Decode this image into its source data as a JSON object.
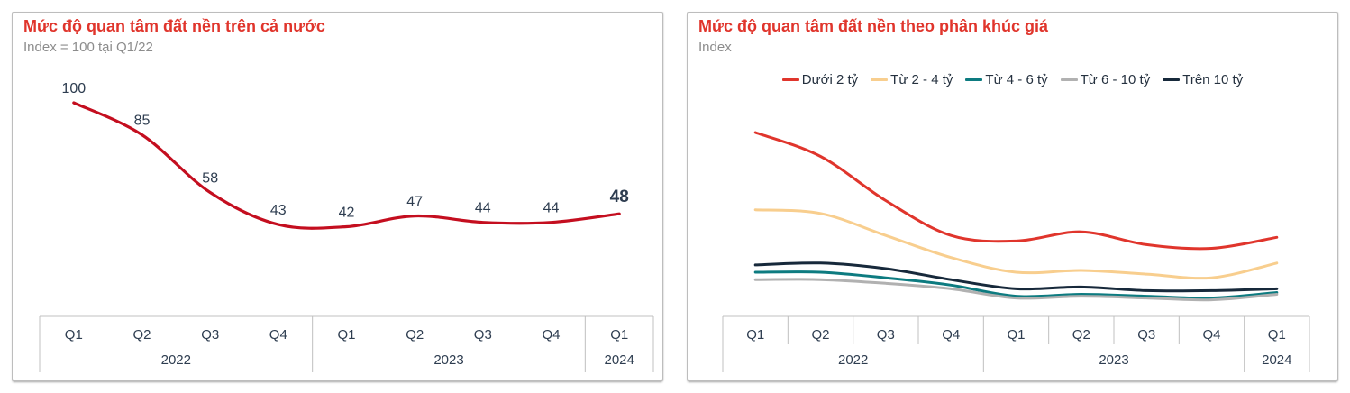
{
  "colors": {
    "title_red": "#e0352c",
    "subtitle_gray": "#8c8c8c",
    "label_navy": "#2e3d50",
    "axis_gray": "#c0c0c0",
    "national_line_red": "#c40e1f",
    "segment_red": "#e0352c",
    "segment_yellow": "#f8ce8e",
    "segment_teal": "#0d7b80",
    "segment_gray": "#b1b1b1",
    "segment_navy": "#17293b"
  },
  "chart_data": [
    {
      "type": "line",
      "title": "Mức độ quan tâm đất nền trên cả nước",
      "subtitle": "Index = 100 tại Q1/22",
      "legend_position": "none",
      "grid": false,
      "ylim": [
        0,
        110
      ],
      "x_quarters": [
        "Q1",
        "Q2",
        "Q3",
        "Q4",
        "Q1",
        "Q2",
        "Q3",
        "Q4",
        "Q1"
      ],
      "x_year_groups": [
        {
          "label": "2022",
          "span": 4
        },
        {
          "label": "2023",
          "span": 4
        },
        {
          "label": "2024",
          "span": 1
        }
      ],
      "show_data_labels": true,
      "emphasize_last_label": true,
      "series": [
        {
          "key": "ca-nuoc",
          "name": "Mức độ quan tâm đất nền trên cả nước",
          "color": "#c40e1f",
          "values": [
            100,
            85,
            58,
            43,
            42,
            47,
            44,
            44,
            48
          ]
        }
      ]
    },
    {
      "type": "line",
      "title": "Mức độ quan tâm đất nền theo phân khúc giá",
      "subtitle": "Index",
      "legend_position": "top",
      "grid": false,
      "ylim": [
        0,
        110
      ],
      "x_quarters": [
        "Q1",
        "Q2",
        "Q3",
        "Q4",
        "Q1",
        "Q2",
        "Q3",
        "Q4",
        "Q1"
      ],
      "x_year_groups": [
        {
          "label": "2022",
          "span": 4
        },
        {
          "label": "2023",
          "span": 4
        },
        {
          "label": "2024",
          "span": 1
        }
      ],
      "show_data_labels": false,
      "emphasize_last_label": false,
      "series": [
        {
          "key": "duoi-2-ty",
          "name": "Dưới 2 tỷ",
          "color": "#e0352c",
          "values": [
            100,
            87,
            63,
            44,
            41,
            46,
            39,
            37,
            43
          ]
        },
        {
          "key": "tu-2-4-ty",
          "name": "Từ 2 - 4 tỷ",
          "color": "#f8ce8e",
          "values": [
            58,
            56,
            44,
            32,
            24,
            25,
            23,
            21,
            29
          ]
        },
        {
          "key": "tu-4-6-ty",
          "name": "Từ 4 - 6 tỷ",
          "color": "#0d7b80",
          "values": [
            24,
            24,
            21,
            17,
            11,
            12,
            11,
            10,
            13
          ]
        },
        {
          "key": "tu-6-10-ty",
          "name": "Từ 6 - 10 tỷ",
          "color": "#b1b1b1",
          "values": [
            20,
            20,
            18,
            15,
            10,
            11,
            10,
            9,
            12
          ]
        },
        {
          "key": "tren-10-ty",
          "name": "Trên 10 tỷ",
          "color": "#17293b",
          "values": [
            28,
            29,
            26,
            20,
            15,
            16,
            14,
            14,
            15
          ]
        }
      ]
    }
  ]
}
